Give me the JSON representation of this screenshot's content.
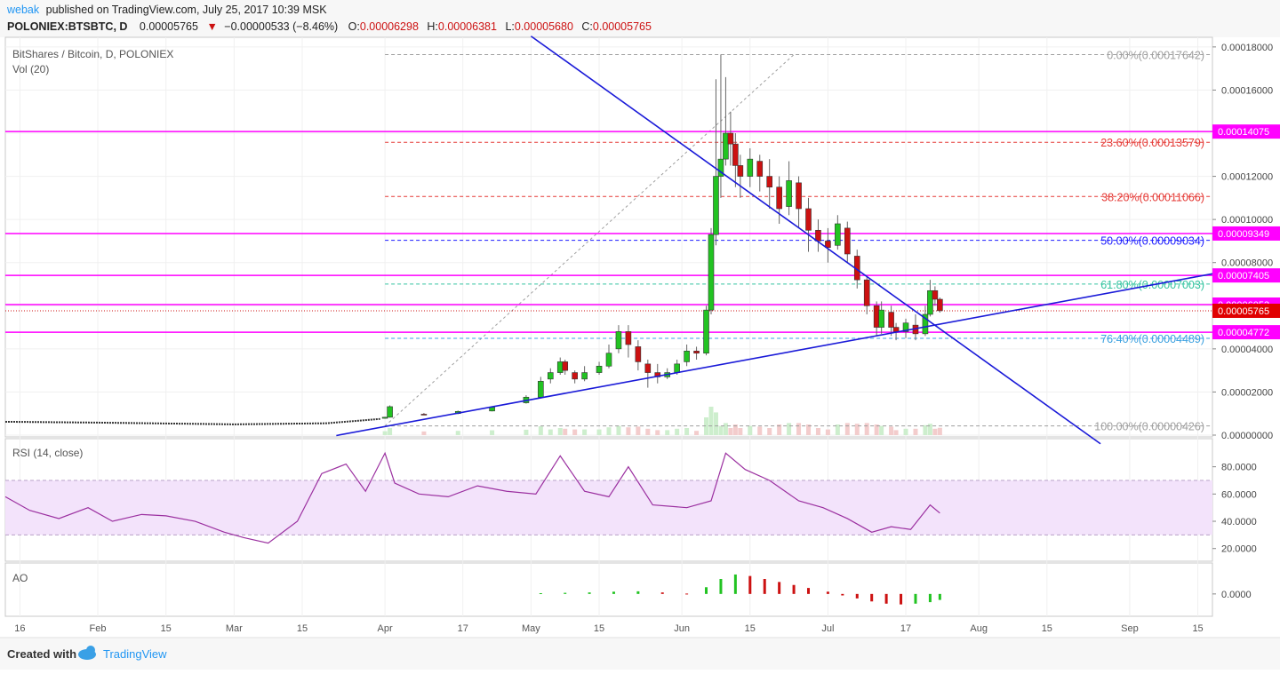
{
  "header": {
    "publisher": "webak",
    "published_text": "published on TradingView.com, July 25, 2017 10:39 MSK",
    "symbol_line": "POLONIEX:BTSBTC, D",
    "last": "0.00005765",
    "change": "−0.00000533 (−8.46%)",
    "open_label": "O:",
    "open": "0.00006298",
    "high_label": "H:",
    "high": "0.00006381",
    "low_label": "L:",
    "low": "0.00005680",
    "close_label": "C:",
    "close": "0.00005765"
  },
  "legend": {
    "pair": "BitShares / Bitcoin, D, POLONIEX",
    "volume": "Vol (20)"
  },
  "footer": {
    "created_with": "Created with",
    "brand": "TradingView",
    "brand_icon": "tradingview-cloud-icon"
  },
  "colors": {
    "up": "#22c322",
    "down": "#cc1111",
    "trend": "#1a1ad8",
    "level": "#ff00ff",
    "rsi": "#9b30a0",
    "rsi_band": "#f3e3fb"
  },
  "chart_data": [
    {
      "type": "candlestick",
      "title": "BitShares / Bitcoin, D, POLONIEX",
      "y_ticks": [
        "0.00018000",
        "0.00016000",
        "0.00014000",
        "0.00012000",
        "0.00010000",
        "0.00008000",
        "0.00006000",
        "0.00004000",
        "0.00002000",
        "0.00000000"
      ],
      "ylim": [
        0,
        0.000182
      ],
      "x_ticks": [
        "16",
        "Feb",
        "15",
        "Mar",
        "15",
        "Apr",
        "17",
        "May",
        "15",
        "Jun",
        "15",
        "Jul",
        "17",
        "Aug",
        "15",
        "Sep",
        "15"
      ],
      "x_range": [
        "2017-01-13",
        "2017-09-18"
      ],
      "last_price": "0.00005765",
      "price_labels": [
        "0.00014075",
        "0.00009349",
        "0.00007405",
        "0.00006053",
        "0.00005765",
        "0.00004772"
      ],
      "horizontal_levels": [
        0.00014075,
        9.349e-05,
        7.405e-05,
        6.053e-05,
        4.772e-05
      ],
      "fibonacci": [
        {
          "label": "0.00%(0.00017642)",
          "value": 0.00017642,
          "color": "#9e9e9e"
        },
        {
          "label": "23.60%(0.00013579)",
          "value": 0.00013579,
          "color": "#e53935"
        },
        {
          "label": "38.20%(0.00011066)",
          "value": 0.00011066,
          "color": "#e53935"
        },
        {
          "label": "50.00%(0.00009034)",
          "value": 9.034e-05,
          "color": "#1a1aff"
        },
        {
          "label": "61.80%(0.00007003)",
          "value": 7.003e-05,
          "color": "#34c4a0"
        },
        {
          "label": "76.40%(0.00004489)",
          "value": 4.489e-05,
          "color": "#3aa0e0"
        },
        {
          "label": "100.00%(0.00000426)",
          "value": 4.26e-06,
          "color": "#9e9e9e"
        }
      ],
      "trendlines": [
        {
          "from": [
            "2017-03-22",
            -2e-07
          ],
          "to": [
            "2017-09-18",
            7.48e-05
          ]
        },
        {
          "from": [
            "2017-05-01",
            0.000185
          ],
          "to": [
            "2017-08-26",
            -4e-06
          ]
        }
      ],
      "candles": [
        [
          "2017-04-01",
          7.8e-06,
          8.3e-06,
          8.5e-06,
          7.6e-06
        ],
        [
          "2017-04-02",
          8.3e-06,
          1.32e-05,
          1.38e-05,
          8.1e-06
        ],
        [
          "2017-04-09",
          9.7e-06,
          9.5e-06,
          1.03e-05,
          9.3e-06
        ],
        [
          "2017-04-16",
          1e-05,
          1.1e-05,
          1.14e-05,
          9.7e-06
        ],
        [
          "2017-04-23",
          1.12e-05,
          1.3e-05,
          1.34e-05,
          1.1e-05
        ],
        [
          "2017-04-30",
          1.5e-05,
          1.76e-05,
          1.85e-05,
          1.46e-05
        ],
        [
          "2017-05-03",
          1.76e-05,
          2.5e-05,
          2.7e-05,
          1.7e-05
        ],
        [
          "2017-05-05",
          2.6e-05,
          2.9e-05,
          3.1e-05,
          2.4e-05
        ],
        [
          "2017-05-07",
          2.9e-05,
          3.4e-05,
          3.6e-05,
          2.8e-05
        ],
        [
          "2017-05-08",
          3.4e-05,
          3e-05,
          3.5e-05,
          2.8e-05
        ],
        [
          "2017-05-10",
          2.9e-05,
          2.6e-05,
          3e-05,
          2.4e-05
        ],
        [
          "2017-05-12",
          2.6e-05,
          2.9e-05,
          3.2e-05,
          2.5e-05
        ],
        [
          "2017-05-15",
          2.9e-05,
          3.2e-05,
          3.4e-05,
          2.8e-05
        ],
        [
          "2017-05-17",
          3.2e-05,
          3.8e-05,
          4.2e-05,
          3.1e-05
        ],
        [
          "2017-05-19",
          4e-05,
          4.8e-05,
          5.1e-05,
          3.8e-05
        ],
        [
          "2017-05-21",
          4.8e-05,
          4.2e-05,
          5.1e-05,
          3.6e-05
        ],
        [
          "2017-05-23",
          4.1e-05,
          3.4e-05,
          4.4e-05,
          3e-05
        ],
        [
          "2017-05-25",
          3.3e-05,
          2.9e-05,
          3.5e-05,
          2.2e-05
        ],
        [
          "2017-05-27",
          2.9e-05,
          2.7e-05,
          3.3e-05,
          2.4e-05
        ],
        [
          "2017-05-29",
          2.7e-05,
          2.9e-05,
          3.1e-05,
          2.6e-05
        ],
        [
          "2017-05-31",
          2.9e-05,
          3.3e-05,
          3.5e-05,
          2.8e-05
        ],
        [
          "2017-06-02",
          3.4e-05,
          3.9e-05,
          4.2e-05,
          3.2e-05
        ],
        [
          "2017-06-04",
          3.9e-05,
          3.8e-05,
          4.1e-05,
          3.5e-05
        ],
        [
          "2017-06-06",
          3.8e-05,
          5.8e-05,
          6e-05,
          3.7e-05
        ],
        [
          "2017-06-07",
          5.8e-05,
          9.3e-05,
          9.6e-05,
          5.6e-05
        ],
        [
          "2017-06-08",
          9.3e-05,
          0.00012,
          0.000165,
          8.8e-05
        ],
        [
          "2017-06-09",
          0.00012,
          0.000128,
          0.0001765,
          0.00011
        ],
        [
          "2017-06-10",
          0.000128,
          0.00014,
          0.000166,
          0.000125
        ],
        [
          "2017-06-11",
          0.00014,
          0.000135,
          0.00015,
          0.000125
        ],
        [
          "2017-06-12",
          0.000135,
          0.000125,
          0.00014,
          0.000115
        ],
        [
          "2017-06-13",
          0.000125,
          0.00012,
          0.00013,
          0.00011
        ],
        [
          "2017-06-15",
          0.00012,
          0.000128,
          0.000133,
          0.000115
        ],
        [
          "2017-06-17",
          0.000127,
          0.00012,
          0.00013,
          0.000113
        ],
        [
          "2017-06-19",
          0.00012,
          0.000115,
          0.000128,
          0.000105
        ],
        [
          "2017-06-21",
          0.000115,
          0.000105,
          0.00012,
          9.8e-05
        ],
        [
          "2017-06-23",
          0.000106,
          0.000118,
          0.000127,
          0.000102
        ],
        [
          "2017-06-25",
          0.000117,
          0.000105,
          0.00012,
          9.6e-05
        ],
        [
          "2017-06-27",
          0.000105,
          9.5e-05,
          0.00011,
          8.5e-05
        ],
        [
          "2017-06-29",
          9.5e-05,
          9e-05,
          0.0001,
          8.5e-05
        ],
        [
          "2017-07-01",
          9e-05,
          8.7e-05,
          9.6e-05,
          8e-05
        ],
        [
          "2017-07-03",
          8.8e-05,
          9.8e-05,
          0.000102,
          8.6e-05
        ],
        [
          "2017-07-05",
          9.6e-05,
          8.4e-05,
          9.9e-05,
          8e-05
        ],
        [
          "2017-07-07",
          8.3e-05,
          7.2e-05,
          8.6e-05,
          6.8e-05
        ],
        [
          "2017-07-09",
          7.2e-05,
          6e-05,
          7.4e-05,
          5.6e-05
        ],
        [
          "2017-07-11",
          6e-05,
          5e-05,
          6.2e-05,
          4.6e-05
        ],
        [
          "2017-07-12",
          5e-05,
          5.8e-05,
          6.2e-05,
          4.7e-05
        ],
        [
          "2017-07-14",
          5.7e-05,
          5e-05,
          6e-05,
          4.6e-05
        ],
        [
          "2017-07-15",
          5e-05,
          4.8e-05,
          5.2e-05,
          4.4e-05
        ],
        [
          "2017-07-17",
          4.8e-05,
          5.2e-05,
          5.4e-05,
          4.5e-05
        ],
        [
          "2017-07-19",
          5.1e-05,
          4.7e-05,
          5.6e-05,
          4.4e-05
        ],
        [
          "2017-07-21",
          4.7e-05,
          5.6e-05,
          6e-05,
          4.6e-05
        ],
        [
          "2017-07-22",
          5.6e-05,
          6.7e-05,
          7.2e-05,
          5.5e-05
        ],
        [
          "2017-07-23",
          6.7e-05,
          6.3e-05,
          6.9e-05,
          6e-05
        ],
        [
          "2017-07-24",
          6.3e-05,
          5.77e-05,
          6.38e-05,
          5.68e-05
        ]
      ]
    },
    {
      "type": "line",
      "title": "RSI (14, close)",
      "y_ticks": [
        "80.0000",
        "60.0000",
        "40.0000",
        "20.0000"
      ],
      "ylim": [
        12,
        98
      ],
      "bands": [
        30,
        70
      ],
      "x": [
        "2017-01-13",
        "2017-01-18",
        "2017-01-24",
        "2017-01-30",
        "2017-02-04",
        "2017-02-10",
        "2017-02-15",
        "2017-02-21",
        "2017-02-27",
        "2017-03-03",
        "2017-03-08",
        "2017-03-14",
        "2017-03-19",
        "2017-03-24",
        "2017-03-28",
        "2017-04-01",
        "2017-04-03",
        "2017-04-08",
        "2017-04-14",
        "2017-04-20",
        "2017-04-26",
        "2017-05-02",
        "2017-05-07",
        "2017-05-12",
        "2017-05-17",
        "2017-05-21",
        "2017-05-26",
        "2017-06-02",
        "2017-06-07",
        "2017-06-10",
        "2017-06-14",
        "2017-06-19",
        "2017-06-25",
        "2017-06-30",
        "2017-07-05",
        "2017-07-10",
        "2017-07-14",
        "2017-07-18",
        "2017-07-22",
        "2017-07-24"
      ],
      "values": [
        58,
        48,
        42,
        50,
        40,
        45,
        44,
        40,
        32,
        28,
        24,
        40,
        75,
        82,
        62,
        90,
        68,
        60,
        58,
        66,
        62,
        60,
        88,
        62,
        58,
        80,
        52,
        50,
        55,
        90,
        78,
        70,
        55,
        50,
        42,
        32,
        36,
        34,
        52,
        46
      ]
    },
    {
      "type": "bar",
      "title": "AO",
      "y_ticks": [
        "0.0000"
      ],
      "ylim": [
        -5.5e-05,
        7.8e-05
      ],
      "x": [
        "2017-05-03",
        "2017-05-08",
        "2017-05-13",
        "2017-05-18",
        "2017-05-23",
        "2017-05-28",
        "2017-06-02",
        "2017-06-06",
        "2017-06-09",
        "2017-06-12",
        "2017-06-15",
        "2017-06-18",
        "2017-06-21",
        "2017-06-24",
        "2017-06-27",
        "2017-07-01",
        "2017-07-04",
        "2017-07-07",
        "2017-07-10",
        "2017-07-13",
        "2017-07-16",
        "2017-07-19",
        "2017-07-22",
        "2017-07-24"
      ],
      "values": [
        2e-06,
        3e-06,
        4e-06,
        6e-06,
        7e-06,
        4e-06,
        1e-06,
        1.8e-05,
        4e-05,
        5.2e-05,
        4.8e-05,
        4e-05,
        3.2e-05,
        2.4e-05,
        1.6e-05,
        6e-06,
        -4e-06,
        -1.2e-05,
        -2e-05,
        -2.6e-05,
        -2.8e-05,
        -2.6e-05,
        -2.2e-05,
        -1.6e-05
      ]
    }
  ]
}
